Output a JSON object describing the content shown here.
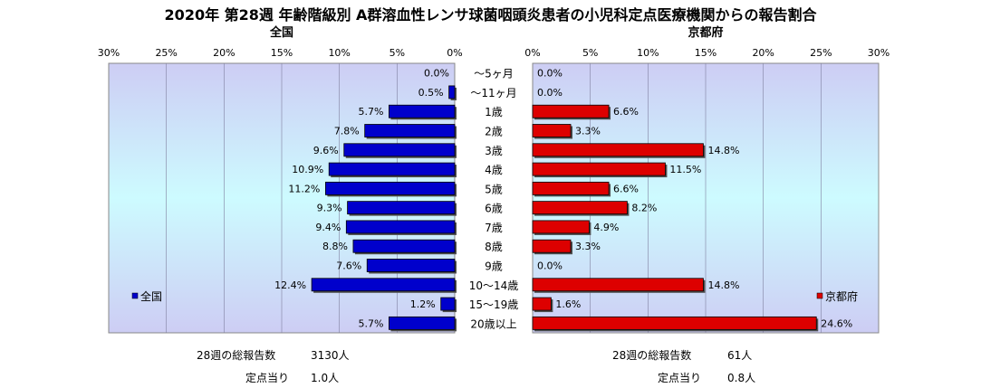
{
  "title": "2020年 第28週 年齢階級別 A群溶血性レンサ球菌咽頭炎患者の小児科定点医療機関からの報告割合",
  "chart_data": {
    "type": "bar",
    "categories": [
      "～5ヶ月",
      "～11ヶ月",
      "1歳",
      "2歳",
      "3歳",
      "4歳",
      "5歳",
      "6歳",
      "7歳",
      "8歳",
      "9歳",
      "10～14歳",
      "15～19歳",
      "20歳以上"
    ],
    "series": [
      {
        "name": "全国",
        "panel_title": "全国",
        "color": "#0000cc",
        "values": [
          0.0,
          0.5,
          5.7,
          7.8,
          9.6,
          10.9,
          11.2,
          9.3,
          9.4,
          8.8,
          7.6,
          12.4,
          1.2,
          5.7
        ],
        "value_labels": [
          "0.0%",
          "0.5%",
          "5.7%",
          "7.8%",
          "9.6%",
          "10.9%",
          "11.2%",
          "9.3%",
          "9.4%",
          "8.8%",
          "7.6%",
          "12.4%",
          "1.2%",
          "5.7%"
        ]
      },
      {
        "name": "京都府",
        "panel_title": "京都府",
        "color": "#dd0000",
        "values": [
          0.0,
          0.0,
          6.6,
          3.3,
          14.8,
          11.5,
          6.6,
          8.2,
          4.9,
          3.3,
          0.0,
          14.8,
          1.6,
          24.6
        ],
        "value_labels": [
          "0.0%",
          "0.0%",
          "6.6%",
          "3.3%",
          "14.8%",
          "11.5%",
          "6.6%",
          "8.2%",
          "4.9%",
          "3.3%",
          "0.0%",
          "14.8%",
          "1.6%",
          "24.6%"
        ]
      }
    ],
    "xlim": [
      0,
      30
    ],
    "ticks": [
      0,
      5,
      10,
      15,
      20,
      25,
      30
    ],
    "tick_labels": [
      "0%",
      "5%",
      "10%",
      "15%",
      "20%",
      "25%",
      "30%"
    ],
    "grid": true,
    "legend": [
      "left",
      "right"
    ]
  },
  "notes": {
    "national_total_label": "28週の総報告数",
    "national_total_value": "3130人",
    "national_per_label": "定点当り",
    "national_per_value": "1.0人",
    "kyoto_total_label": "28週の総報告数",
    "kyoto_total_value": "61人",
    "kyoto_per_label": "定点当り",
    "kyoto_per_value": "0.8人"
  }
}
